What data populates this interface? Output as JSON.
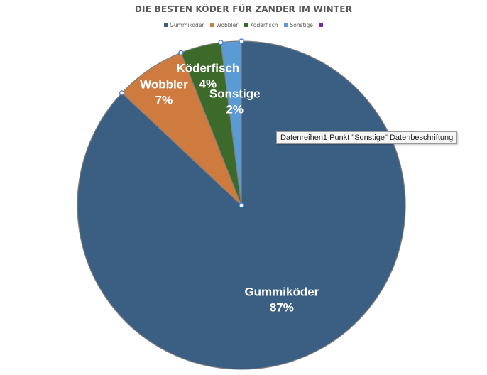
{
  "chart_data": {
    "type": "pie",
    "title": "DIE BESTEN KÖDER FÜR ZANDER IM WINTER",
    "categories": [
      "Gummiköder",
      "Wobbler",
      "Köderfisch",
      "Sonstige"
    ],
    "values": [
      87,
      7,
      4,
      2
    ],
    "data_labels": [
      "87%",
      "7%",
      "4%",
      "2%"
    ],
    "colors": [
      "#3a5f82",
      "#cf7a3e",
      "#3c6a2a",
      "#5b9bd5"
    ],
    "legend_position": "top",
    "legend_extra_swatch_color": "#7030a0",
    "start_angle": "12-o'clock",
    "direction": "clockwise"
  },
  "tooltip": {
    "text": "Datenreihen1 Punkt \"Sonstige\" Datenbeschriftung"
  }
}
